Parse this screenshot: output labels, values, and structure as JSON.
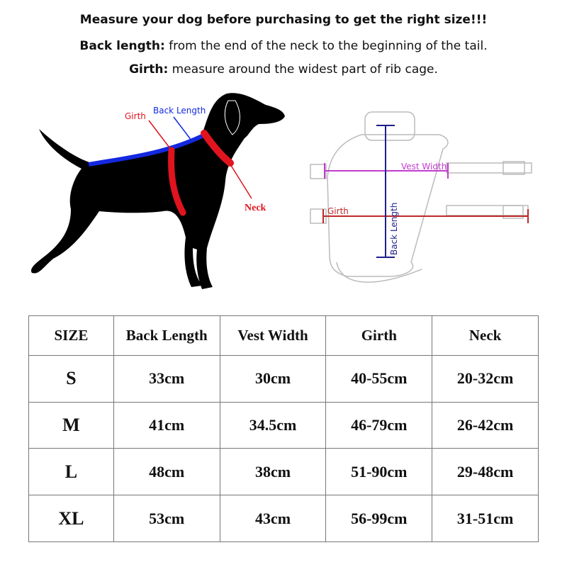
{
  "header": {
    "line1": "Measure your dog before purchasing to get the right size!!!",
    "line2_label": "Back length:",
    "line2_text": " from the end of the neck to the beginning of the tail.",
    "line3_label": "Girth:",
    "line3_text": " measure around the widest part of rib cage."
  },
  "dog_diagram": {
    "girth": "Girth",
    "back_length": "Back Length",
    "neck": "Neck",
    "colors": {
      "girth": "#e0141e",
      "back": "#1428e0",
      "silhouette": "#000000"
    }
  },
  "vest_diagram": {
    "vest_width": "Vest Width",
    "girth": "Girth",
    "back_length": "Back Length",
    "colors": {
      "vest_width": "#c23ccf",
      "girth": "#c0282a",
      "back": "#1e1e8c"
    }
  },
  "table": {
    "headers": [
      "SIZE",
      "Back Length",
      "Vest Width",
      "Girth",
      "Neck"
    ],
    "rows": [
      [
        "S",
        "33cm",
        "30cm",
        "40-55cm",
        "20-32cm"
      ],
      [
        "M",
        "41cm",
        "34.5cm",
        "46-79cm",
        "26-42cm"
      ],
      [
        "L",
        "48cm",
        "38cm",
        "51-90cm",
        "29-48cm"
      ],
      [
        "XL",
        "53cm",
        "43cm",
        "56-99cm",
        "31-51cm"
      ]
    ]
  }
}
